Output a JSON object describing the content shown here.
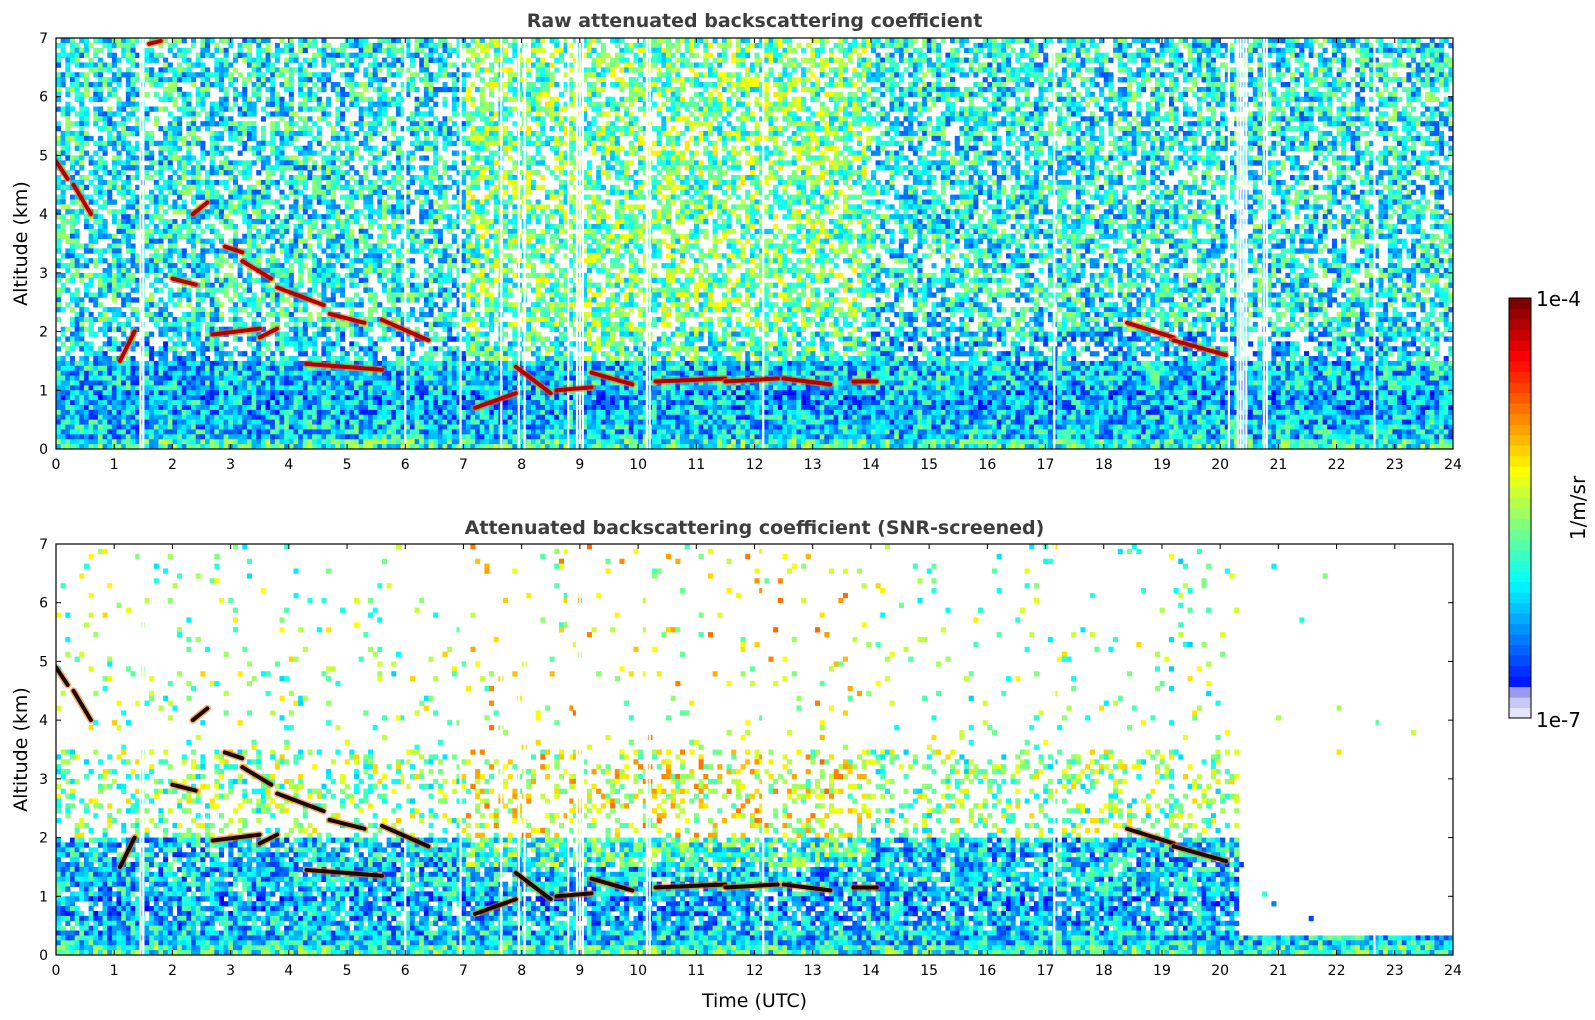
{
  "chart_data": [
    {
      "type": "heatmap",
      "title": "Raw attenuated backscattering coefficient",
      "xlabel": "",
      "ylabel": "Altitude (km)",
      "xlim": [
        0,
        24
      ],
      "ylim": [
        0,
        7
      ],
      "xticks": [
        0,
        1,
        2,
        3,
        4,
        5,
        6,
        7,
        8,
        9,
        10,
        11,
        12,
        13,
        14,
        15,
        16,
        17,
        18,
        19,
        20,
        21,
        22,
        23,
        24
      ],
      "yticks": [
        0,
        1,
        2,
        3,
        4,
        5,
        6,
        7
      ],
      "screened": false,
      "data_gaps_utc": [
        1.45,
        1.5,
        6.0,
        6.95,
        7.65,
        7.95,
        8.05,
        8.8,
        8.95,
        9.0,
        9.05,
        10.15,
        10.2,
        12.15,
        17.15,
        20.15,
        20.3,
        20.35,
        20.4,
        20.45,
        20.75,
        20.8,
        22.65
      ],
      "layers": [
        {
          "x": [
            0.0,
            0.2
          ],
          "y": [
            4.9,
            4.6
          ]
        },
        {
          "x": [
            0.3,
            0.6
          ],
          "y": [
            4.5,
            4.0
          ]
        },
        {
          "x": [
            1.1,
            1.35
          ],
          "y": [
            1.5,
            2.0
          ]
        },
        {
          "x": [
            1.6,
            1.8
          ],
          "y": [
            6.9,
            6.95
          ]
        },
        {
          "x": [
            2.0,
            2.4
          ],
          "y": [
            2.9,
            2.8
          ]
        },
        {
          "x": [
            2.35,
            2.6
          ],
          "y": [
            4.0,
            4.2
          ]
        },
        {
          "x": [
            2.9,
            3.2
          ],
          "y": [
            3.45,
            3.35
          ]
        },
        {
          "x": [
            3.2,
            3.7
          ],
          "y": [
            3.2,
            2.9
          ]
        },
        {
          "x": [
            2.7,
            3.5
          ],
          "y": [
            1.95,
            2.05
          ]
        },
        {
          "x": [
            3.5,
            3.8
          ],
          "y": [
            1.9,
            2.05
          ]
        },
        {
          "x": [
            3.8,
            4.6
          ],
          "y": [
            2.75,
            2.45
          ]
        },
        {
          "x": [
            4.7,
            5.3
          ],
          "y": [
            2.3,
            2.15
          ]
        },
        {
          "x": [
            4.3,
            5.6
          ],
          "y": [
            1.45,
            1.35
          ]
        },
        {
          "x": [
            5.6,
            6.4
          ],
          "y": [
            2.2,
            1.85
          ]
        },
        {
          "x": [
            7.2,
            7.9
          ],
          "y": [
            0.7,
            0.95
          ]
        },
        {
          "x": [
            7.9,
            8.5
          ],
          "y": [
            1.4,
            0.95
          ]
        },
        {
          "x": [
            8.6,
            9.2
          ],
          "y": [
            1.0,
            1.05
          ]
        },
        {
          "x": [
            9.2,
            9.9
          ],
          "y": [
            1.3,
            1.1
          ]
        },
        {
          "x": [
            10.3,
            11.5
          ],
          "y": [
            1.15,
            1.2
          ]
        },
        {
          "x": [
            11.5,
            12.4
          ],
          "y": [
            1.15,
            1.2
          ]
        },
        {
          "x": [
            12.5,
            13.3
          ],
          "y": [
            1.2,
            1.1
          ]
        },
        {
          "x": [
            13.7,
            14.1
          ],
          "y": [
            1.15,
            1.15
          ]
        },
        {
          "x": [
            18.4,
            19.2
          ],
          "y": [
            2.15,
            1.9
          ]
        },
        {
          "x": [
            19.2,
            20.1
          ],
          "y": [
            1.85,
            1.6
          ]
        }
      ]
    },
    {
      "type": "heatmap",
      "title": "Attenuated backscattering coefficient (SNR-screened)",
      "xlabel": "Time (UTC)",
      "ylabel": "Altitude (km)",
      "xlim": [
        0,
        24
      ],
      "ylim": [
        0,
        7
      ],
      "xticks": [
        0,
        1,
        2,
        3,
        4,
        5,
        6,
        7,
        8,
        9,
        10,
        11,
        12,
        13,
        14,
        15,
        16,
        17,
        18,
        19,
        20,
        21,
        22,
        23,
        24
      ],
      "yticks": [
        0,
        1,
        2,
        3,
        4,
        5,
        6,
        7
      ],
      "screened": true,
      "data_gaps_utc": [
        1.45,
        1.5,
        6.0,
        6.95,
        7.65,
        7.95,
        8.05,
        8.8,
        8.95,
        9.0,
        9.05,
        10.15,
        10.2,
        12.15,
        17.15,
        22.65
      ],
      "layers": [
        {
          "x": [
            0.0,
            0.2
          ],
          "y": [
            4.9,
            4.6
          ]
        },
        {
          "x": [
            0.3,
            0.6
          ],
          "y": [
            4.5,
            4.0
          ]
        },
        {
          "x": [
            1.1,
            1.35
          ],
          "y": [
            1.5,
            2.0
          ]
        },
        {
          "x": [
            2.0,
            2.4
          ],
          "y": [
            2.9,
            2.8
          ]
        },
        {
          "x": [
            2.35,
            2.6
          ],
          "y": [
            4.0,
            4.2
          ]
        },
        {
          "x": [
            2.9,
            3.2
          ],
          "y": [
            3.45,
            3.35
          ]
        },
        {
          "x": [
            3.2,
            3.7
          ],
          "y": [
            3.2,
            2.9
          ]
        },
        {
          "x": [
            2.7,
            3.5
          ],
          "y": [
            1.95,
            2.05
          ]
        },
        {
          "x": [
            3.5,
            3.8
          ],
          "y": [
            1.9,
            2.05
          ]
        },
        {
          "x": [
            3.8,
            4.6
          ],
          "y": [
            2.75,
            2.45
          ]
        },
        {
          "x": [
            4.7,
            5.3
          ],
          "y": [
            2.3,
            2.15
          ]
        },
        {
          "x": [
            4.3,
            5.6
          ],
          "y": [
            1.45,
            1.35
          ]
        },
        {
          "x": [
            5.6,
            6.4
          ],
          "y": [
            2.2,
            1.85
          ]
        },
        {
          "x": [
            7.2,
            7.9
          ],
          "y": [
            0.7,
            0.95
          ]
        },
        {
          "x": [
            7.9,
            8.5
          ],
          "y": [
            1.4,
            0.95
          ]
        },
        {
          "x": [
            8.6,
            9.2
          ],
          "y": [
            1.0,
            1.05
          ]
        },
        {
          "x": [
            9.2,
            9.9
          ],
          "y": [
            1.3,
            1.1
          ]
        },
        {
          "x": [
            10.3,
            11.5
          ],
          "y": [
            1.15,
            1.2
          ]
        },
        {
          "x": [
            11.5,
            12.4
          ],
          "y": [
            1.15,
            1.2
          ]
        },
        {
          "x": [
            12.5,
            13.3
          ],
          "y": [
            1.2,
            1.1
          ]
        },
        {
          "x": [
            13.7,
            14.1
          ],
          "y": [
            1.15,
            1.15
          ]
        },
        {
          "x": [
            18.4,
            19.2
          ],
          "y": [
            2.15,
            1.9
          ]
        },
        {
          "x": [
            19.2,
            20.1
          ],
          "y": [
            1.85,
            1.6
          ]
        }
      ]
    }
  ],
  "colorbar": {
    "label": "1/m/sr",
    "max_label": "1e-4",
    "min_label": "1e-7",
    "min_value": 1e-07,
    "max_value": 0.0001,
    "scale": "log",
    "colormap": "jet",
    "colors": [
      "#e6e6fa",
      "#0000ff",
      "#00ccff",
      "#66ff66",
      "#ffcc00",
      "#ff3300",
      "#800000"
    ]
  }
}
